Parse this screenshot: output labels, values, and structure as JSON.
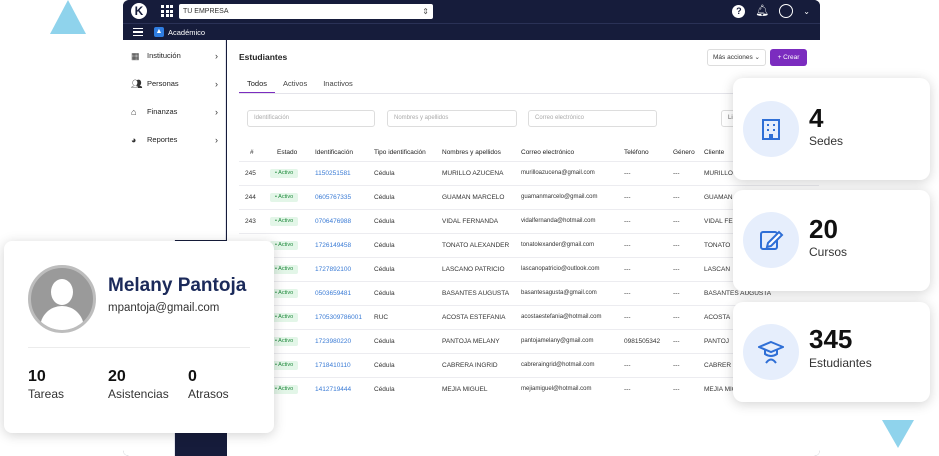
{
  "topbar": {
    "logo": "K",
    "company": "TU EMPRESA",
    "icons": [
      "apps-icon",
      "help-icon",
      "bell-icon",
      "user-icon",
      "chevron-down-icon"
    ]
  },
  "subbar": {
    "module": "Académico"
  },
  "sidebar": {
    "items": [
      {
        "label": "Institución",
        "icon": "building-icon"
      },
      {
        "label": "Personas",
        "icon": "people-icon"
      },
      {
        "label": "Finanzas",
        "icon": "bank-icon"
      },
      {
        "label": "Reportes",
        "icon": "pie-chart-icon"
      }
    ]
  },
  "main": {
    "title": "Estudiantes",
    "more_actions": "Más acciones ⌄",
    "create": "+ Crear",
    "tabs": [
      "Todos",
      "Activos",
      "Inactivos"
    ],
    "filters": {
      "identificacion": "Identificación",
      "nombres": "Nombres y apellidos",
      "correo": "Correo electrónico",
      "extra": "Li"
    }
  },
  "table": {
    "headers": [
      "#",
      "Estado",
      "Identificación",
      "Tipo identificación",
      "Nombres y apellidos",
      "Correo electrónico",
      "Teléfono",
      "Género",
      "Cliente"
    ],
    "rows": [
      {
        "n": "245",
        "estado": "• Activo",
        "id": "1150251581",
        "tipo": "Cédula",
        "nombre": "MURILLO AZUCENA",
        "correo": "murilloazucena@gmail.com",
        "tel": "---",
        "gen": "---",
        "cliente": "MURILLO AZUCENA"
      },
      {
        "n": "244",
        "estado": "• Activo",
        "id": "0605767335",
        "tipo": "Cédula",
        "nombre": "GUAMAN MARCELO",
        "correo": "guamanmarcelo@gmail.com",
        "tel": "---",
        "gen": "---",
        "cliente": "GUAMAN"
      },
      {
        "n": "243",
        "estado": "• Activo",
        "id": "0706476988",
        "tipo": "Cédula",
        "nombre": "VIDAL FERNANDA",
        "correo": "vidalfernanda@hotmail.com",
        "tel": "---",
        "gen": "---",
        "cliente": "VIDAL FE"
      },
      {
        "n": "",
        "estado": "• Activo",
        "id": "1726149458",
        "tipo": "Cédula",
        "nombre": "TONATO ALEXANDER",
        "correo": "tonatolexander@gmail.com",
        "tel": "---",
        "gen": "---",
        "cliente": "TONATO"
      },
      {
        "n": "",
        "estado": "• Activo",
        "id": "1727892100",
        "tipo": "Cédula",
        "nombre": "LASCANO PATRICIO",
        "correo": "lascanopatricio@outlook.com",
        "tel": "---",
        "gen": "---",
        "cliente": "LASCAN"
      },
      {
        "n": "",
        "estado": "• Activo",
        "id": "0503659481",
        "tipo": "Cédula",
        "nombre": "BASANTES AUGUSTA",
        "correo": "basantesagusta@gmail.com",
        "tel": "---",
        "gen": "---",
        "cliente": "BASANTES AUGUSTA"
      },
      {
        "n": "",
        "estado": "• Activo",
        "id": "1705309786001",
        "tipo": "RUC",
        "nombre": "ACOSTA ESTEFANIA",
        "correo": "acostaestefania@hotmail.com",
        "tel": "---",
        "gen": "---",
        "cliente": "ACOSTA"
      },
      {
        "n": "",
        "estado": "• Activo",
        "id": "1723980220",
        "tipo": "Cédula",
        "nombre": "PANTOJA MELANY",
        "correo": "pantojamelany@gmail.com",
        "tel": "0981505342",
        "gen": "---",
        "cliente": "PANTOJ"
      },
      {
        "n": "",
        "estado": "• Activo",
        "id": "1718410110",
        "tipo": "Cédula",
        "nombre": "CABRERA INGRID",
        "correo": "cabreraingrid@hotmail.com",
        "tel": "---",
        "gen": "---",
        "cliente": "CABRER"
      },
      {
        "n": "",
        "estado": "• Activo",
        "id": "1412719444",
        "tipo": "Cédula",
        "nombre": "MEJIA MIGUEL",
        "correo": "mejiamiguel@hotmail.com",
        "tel": "---",
        "gen": "---",
        "cliente": "MEJIA MIG"
      }
    ]
  },
  "profile": {
    "name": "Melany Pantoja",
    "email": "mpantoja@gmail.com",
    "stats": [
      {
        "num": "10",
        "label": "Tareas"
      },
      {
        "num": "20",
        "label": "Asistencias"
      },
      {
        "num": "0",
        "label": "Atrasos"
      }
    ]
  },
  "kpis": [
    {
      "num": "4",
      "label": "Sedes",
      "icon": "building-icon"
    },
    {
      "num": "20",
      "label": "Cursos",
      "icon": "edit-icon"
    },
    {
      "num": "345",
      "label": "Estudiantes",
      "icon": "graduate-icon"
    }
  ],
  "colors": {
    "accent": "#7b2cbf",
    "navy": "#161c3b",
    "link": "#3a7bd5",
    "kpi_icon": "#2f6fd6"
  }
}
